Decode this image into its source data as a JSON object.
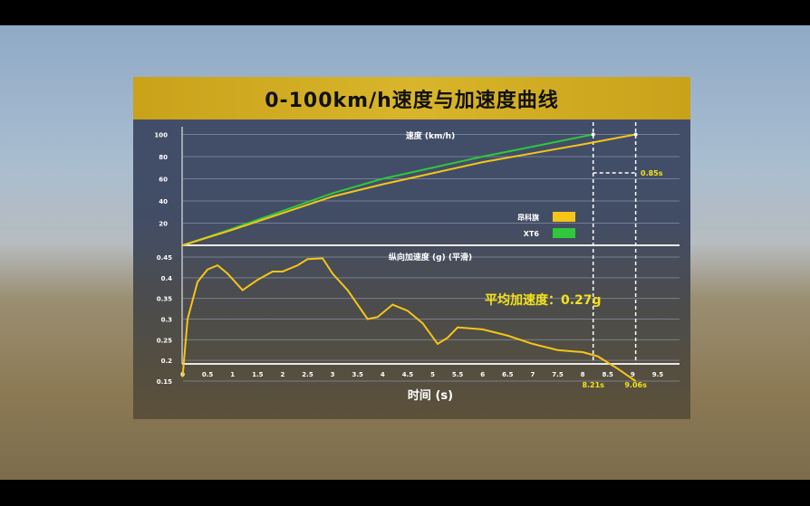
{
  "title": "0-100km/h速度与加速度曲线",
  "chart_data": [
    {
      "type": "line",
      "title": "速度 (km/h)",
      "ylim": [
        0,
        100
      ],
      "yticks": [
        "20",
        "40",
        "60",
        "80",
        "100"
      ],
      "legend": "right",
      "grid": true,
      "series": [
        {
          "name": "昂科旗",
          "color": "#f5c518",
          "x": [
            0,
            1,
            2,
            3,
            4,
            5,
            6,
            7,
            8,
            9.06
          ],
          "y": [
            0,
            14,
            29,
            44,
            55,
            65,
            75,
            83,
            91,
            100
          ]
        },
        {
          "name": "XT6",
          "color": "#2fc83a",
          "x": [
            0,
            1,
            2,
            3,
            4,
            5,
            6,
            7,
            8.21
          ],
          "y": [
            0,
            15,
            31,
            47,
            60,
            70,
            80,
            89,
            100
          ]
        }
      ],
      "annotation": "0.85s"
    },
    {
      "type": "line",
      "title": "纵向加速度 (g) (平滑)",
      "xlabel": "时间 (s)",
      "xlim": [
        0,
        9.9
      ],
      "ylim": [
        0.15,
        0.45
      ],
      "xticks": [
        "0",
        "0.5",
        "1",
        "1.5",
        "2",
        "2.5",
        "3",
        "3.5",
        "4",
        "4.5",
        "5",
        "5.5",
        "6",
        "6.5",
        "7",
        "7.5",
        "8",
        "8.5",
        "9",
        "9.5"
      ],
      "yticks": [
        "0.15",
        "0.2",
        "0.25",
        "0.3",
        "0.35",
        "0.4",
        "0.45"
      ],
      "grid": true,
      "series": [
        {
          "color": "#f5c518",
          "x": [
            0,
            0.1,
            0.3,
            0.5,
            0.7,
            0.9,
            1.2,
            1.5,
            1.8,
            2.0,
            2.3,
            2.5,
            2.8,
            3.0,
            3.3,
            3.7,
            3.9,
            4.2,
            4.5,
            4.8,
            5.1,
            5.3,
            5.5,
            6.0,
            6.5,
            7.0,
            7.5,
            8.0,
            8.3,
            8.7,
            9.06
          ],
          "y": [
            0.16,
            0.3,
            0.39,
            0.42,
            0.43,
            0.41,
            0.37,
            0.395,
            0.415,
            0.415,
            0.43,
            0.445,
            0.447,
            0.41,
            0.37,
            0.3,
            0.305,
            0.335,
            0.32,
            0.29,
            0.24,
            0.255,
            0.28,
            0.275,
            0.26,
            0.24,
            0.225,
            0.22,
            0.21,
            0.18,
            0.15
          ]
        }
      ],
      "annotation": "平均加速度：0.27g",
      "markers": [
        {
          "x": 8.21,
          "label": "8.21s"
        },
        {
          "x": 9.06,
          "label": "9.06s"
        }
      ]
    }
  ]
}
